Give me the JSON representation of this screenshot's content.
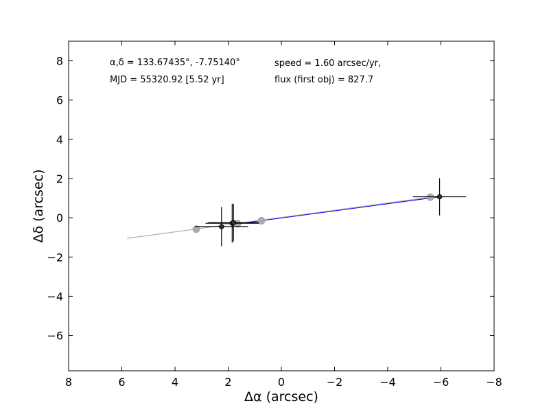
{
  "chart_data": {
    "type": "scatter",
    "xlabel": "Δα (arcsec)",
    "ylabel": "Δδ (arcsec)",
    "xlim": [
      8,
      -8
    ],
    "ylim": [
      -7.8,
      9.0
    ],
    "xticks": [
      8,
      6,
      4,
      2,
      0,
      -2,
      -4,
      -6,
      -8
    ],
    "xtick_labels": [
      "8",
      "6",
      "4",
      "2",
      "0",
      "−2",
      "−4",
      "−6",
      "−8"
    ],
    "yticks": [
      8,
      6,
      4,
      2,
      0,
      -2,
      -4,
      -6
    ],
    "ytick_labels": [
      "8",
      "6",
      "4",
      "2",
      "0",
      "−2",
      "−4",
      "−6"
    ],
    "grid": false,
    "annotations": {
      "coords": "α,δ = 133.67435°, -7.75140°",
      "mjd": "MJD = 55320.92 [5.52 yr]",
      "speed": "speed = 1.60 arcsec/yr,",
      "flux": "flux (first obj) = 827.7"
    },
    "model_line": {
      "x": [
        5.8,
        -5.6
      ],
      "y": [
        -1.05,
        1.05
      ],
      "color": "#aaaaaa"
    },
    "fit_line": {
      "x": [
        1.85,
        -5.95
      ],
      "y": [
        -0.35,
        1.07
      ],
      "color": "#0000ff"
    },
    "predicted_points": {
      "color": "#aaaaaa",
      "x": [
        3.2,
        1.65,
        0.75,
        -5.6
      ],
      "y": [
        -0.58,
        -0.3,
        -0.15,
        1.05
      ]
    },
    "measured_points": {
      "color": "#000000",
      "x": [
        2.25,
        1.85,
        1.8,
        -5.95
      ],
      "y": [
        -0.45,
        -0.28,
        -0.25,
        1.07
      ],
      "xerr": [
        1.0,
        1.0,
        0.95,
        1.0
      ],
      "yerr": [
        1.0,
        1.0,
        0.95,
        0.95
      ]
    }
  }
}
